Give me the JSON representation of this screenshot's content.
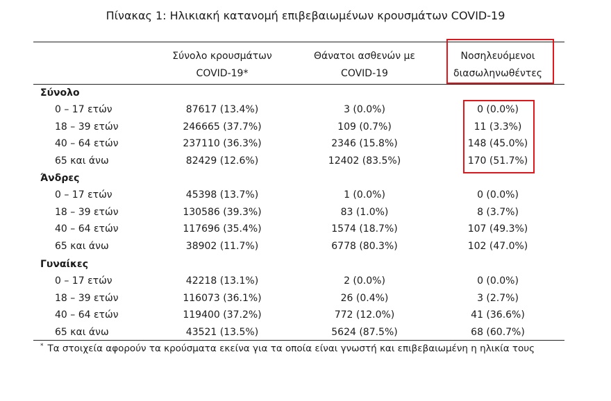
{
  "title": "Πίνακας 1: Ηλικιακή κατανομή επιβεβαιωμένων κρουσμάτων COVID-19",
  "columns": [
    {
      "line1": "Σύνολο κρουσμάτων",
      "line2": "COVID-19*"
    },
    {
      "line1": "Θάνατοι ασθενών με",
      "line2": "COVID-19"
    },
    {
      "line1": "Νοσηλευόμενοι",
      "line2": "διασωληνωθέντες"
    }
  ],
  "groups": [
    {
      "label": "Σύνολο",
      "rows": [
        {
          "age": "0 – 17 ετών",
          "cases": "87617 (13.4%)",
          "deaths": "3 (0.0%)",
          "intubated": "0 (0.0%)"
        },
        {
          "age": "18 – 39 ετών",
          "cases": "246665 (37.7%)",
          "deaths": "109 (0.7%)",
          "intubated": "11 (3.3%)"
        },
        {
          "age": "40 – 64 ετών",
          "cases": "237110 (36.3%)",
          "deaths": "2346 (15.8%)",
          "intubated": "148 (45.0%)"
        },
        {
          "age": "65 και άνω",
          "cases": "82429 (12.6%)",
          "deaths": "12402 (83.5%)",
          "intubated": "170 (51.7%)"
        }
      ]
    },
    {
      "label": "Άνδρες",
      "rows": [
        {
          "age": "0 – 17 ετών",
          "cases": "45398 (13.7%)",
          "deaths": "1 (0.0%)",
          "intubated": "0 (0.0%)"
        },
        {
          "age": "18 – 39 ετών",
          "cases": "130586 (39.3%)",
          "deaths": "83 (1.0%)",
          "intubated": "8 (3.7%)"
        },
        {
          "age": "40 – 64 ετών",
          "cases": "117696 (35.4%)",
          "deaths": "1574 (18.7%)",
          "intubated": "107 (49.3%)"
        },
        {
          "age": "65 και άνω",
          "cases": "38902 (11.7%)",
          "deaths": "6778 (80.3%)",
          "intubated": "102 (47.0%)"
        }
      ]
    },
    {
      "label": "Γυναίκες",
      "rows": [
        {
          "age": "0 – 17 ετών",
          "cases": "42218 (13.1%)",
          "deaths": "2 (0.0%)",
          "intubated": "0 (0.0%)"
        },
        {
          "age": "18 – 39 ετών",
          "cases": "116073 (36.1%)",
          "deaths": "26 (0.4%)",
          "intubated": "3 (2.7%)"
        },
        {
          "age": "40 – 64 ετών",
          "cases": "119400 (37.2%)",
          "deaths": "772 (12.0%)",
          "intubated": "41 (36.6%)"
        },
        {
          "age": "65 και άνω",
          "cases": "43521 (13.5%)",
          "deaths": "5624 (87.5%)",
          "intubated": "68 (60.7%)"
        }
      ]
    }
  ],
  "footnote": {
    "marker": "*",
    "text": "Τα στοιχεία αφορούν τα κρούσματα εκείνα για τα οποία είναι γνωστή και επιβεβαιωμένη η ηλικία τους"
  },
  "highlight_color": "#e0161b"
}
